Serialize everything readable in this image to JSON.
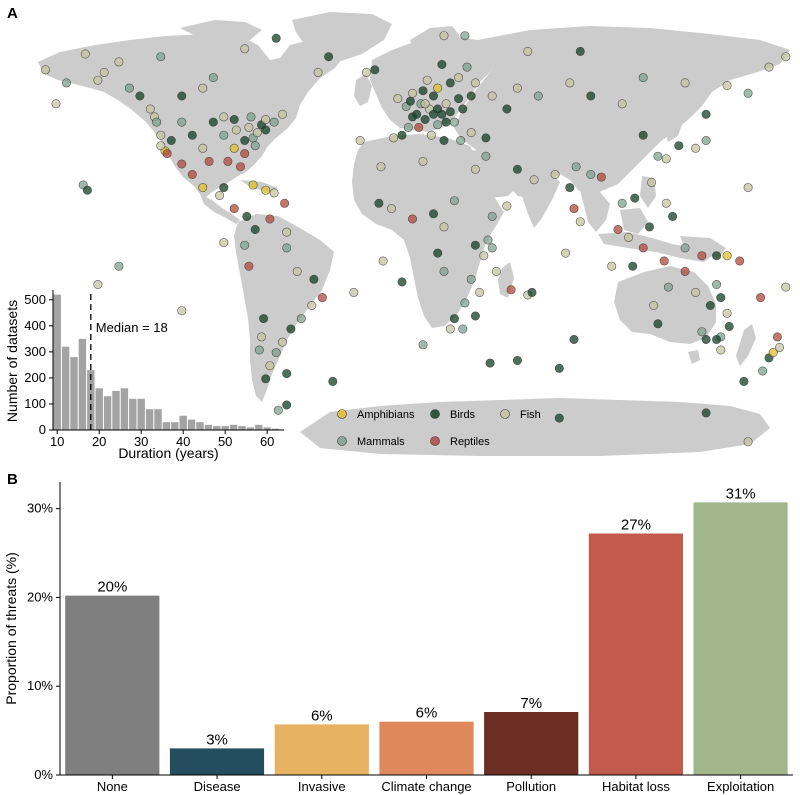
{
  "panels": {
    "a_label": "A",
    "b_label": "B"
  },
  "legend": {
    "title": "",
    "items": [
      {
        "name": "Amphibians",
        "color": "#e2bf2a"
      },
      {
        "name": "Birds",
        "color": "#123f25"
      },
      {
        "name": "Fish",
        "color": "#c5c3a2"
      },
      {
        "name": "Mammals",
        "color": "#7fa290"
      },
      {
        "name": "Reptiles",
        "color": "#b3493b"
      }
    ]
  },
  "map_points": [
    {
      "lon": -156,
      "lat": 71,
      "t": "Fish"
    },
    {
      "lon": -150,
      "lat": 61,
      "t": "Fish"
    },
    {
      "lon": -147,
      "lat": 64,
      "t": "Fish"
    },
    {
      "lon": -135,
      "lat": 58,
      "t": "Mammals"
    },
    {
      "lon": -130,
      "lat": 55,
      "t": "Birds"
    },
    {
      "lon": -125,
      "lat": 50,
      "t": "Fish"
    },
    {
      "lon": -123,
      "lat": 47,
      "t": "Fish"
    },
    {
      "lon": -122,
      "lat": 45,
      "t": "Mammals"
    },
    {
      "lon": -120,
      "lat": 40,
      "t": "Fish"
    },
    {
      "lon": -118,
      "lat": 34,
      "t": "Amphibians"
    },
    {
      "lon": -117,
      "lat": 33,
      "t": "Reptiles"
    },
    {
      "lon": -115,
      "lat": 38,
      "t": "Birds"
    },
    {
      "lon": -110,
      "lat": 45,
      "t": "Mammals"
    },
    {
      "lon": -105,
      "lat": 40,
      "t": "Birds"
    },
    {
      "lon": -100,
      "lat": 35,
      "t": "Fish"
    },
    {
      "lon": -97,
      "lat": 30,
      "t": "Reptiles"
    },
    {
      "lon": -95,
      "lat": 45,
      "t": "Birds"
    },
    {
      "lon": -90,
      "lat": 40,
      "t": "Mammals"
    },
    {
      "lon": -88,
      "lat": 30,
      "t": "Reptiles"
    },
    {
      "lon": -85,
      "lat": 35,
      "t": "Amphibians"
    },
    {
      "lon": -84,
      "lat": 42,
      "t": "Fish"
    },
    {
      "lon": -82,
      "lat": 28,
      "t": "Reptiles"
    },
    {
      "lon": -80,
      "lat": 38,
      "t": "Birds"
    },
    {
      "lon": -78,
      "lat": 43,
      "t": "Fish"
    },
    {
      "lon": -76,
      "lat": 39,
      "t": "Mammals"
    },
    {
      "lon": -74,
      "lat": 41,
      "t": "Fish"
    },
    {
      "lon": -72,
      "lat": 44,
      "t": "Birds"
    },
    {
      "lon": -70,
      "lat": 46,
      "t": "Fish"
    },
    {
      "lon": -66,
      "lat": 45,
      "t": "Mammals"
    },
    {
      "lon": -62,
      "lat": 48,
      "t": "Fish"
    },
    {
      "lon": -110,
      "lat": 55,
      "t": "Birds"
    },
    {
      "lon": -100,
      "lat": 58,
      "t": "Fish"
    },
    {
      "lon": -95,
      "lat": 62,
      "t": "Mammals"
    },
    {
      "lon": -105,
      "lat": 25,
      "t": "Reptiles"
    },
    {
      "lon": -100,
      "lat": 20,
      "t": "Amphibians"
    },
    {
      "lon": -92,
      "lat": 17,
      "t": "Fish"
    },
    {
      "lon": -85,
      "lat": 12,
      "t": "Reptiles"
    },
    {
      "lon": -79,
      "lat": 9,
      "t": "Birds"
    },
    {
      "lon": -76,
      "lat": 21,
      "t": "Amphibians"
    },
    {
      "lon": -66,
      "lat": 18,
      "t": "Fish"
    },
    {
      "lon": -61,
      "lat": 14,
      "t": "Reptiles"
    },
    {
      "lon": -75,
      "lat": 4,
      "t": "Birds"
    },
    {
      "lon": -68,
      "lat": 8,
      "t": "Reptiles"
    },
    {
      "lon": -60,
      "lat": 3,
      "t": "Fish"
    },
    {
      "lon": -60,
      "lat": -3,
      "t": "Mammals"
    },
    {
      "lon": -55,
      "lat": -12,
      "t": "Fish"
    },
    {
      "lon": -47,
      "lat": -15,
      "t": "Birds"
    },
    {
      "lon": -43,
      "lat": -22,
      "t": "Reptiles"
    },
    {
      "lon": -48,
      "lat": -25,
      "t": "Fish"
    },
    {
      "lon": -53,
      "lat": -30,
      "t": "Mammals"
    },
    {
      "lon": -58,
      "lat": -34,
      "t": "Birds"
    },
    {
      "lon": -62,
      "lat": -39,
      "t": "Fish"
    },
    {
      "lon": -65,
      "lat": -43,
      "t": "Mammals"
    },
    {
      "lon": -68,
      "lat": -48,
      "t": "Fish"
    },
    {
      "lon": -71,
      "lat": -30,
      "t": "Birds"
    },
    {
      "lon": -72,
      "lat": -37,
      "t": "Fish"
    },
    {
      "lon": -73,
      "lat": -42,
      "t": "Mammals"
    },
    {
      "lon": -70,
      "lat": -53,
      "t": "Birds"
    },
    {
      "lon": -60,
      "lat": -51,
      "t": "Birds"
    },
    {
      "lon": -38,
      "lat": -54,
      "t": "Birds"
    },
    {
      "lon": -78,
      "lat": -10,
      "t": "Reptiles"
    },
    {
      "lon": -80,
      "lat": -2,
      "t": "Mammals"
    },
    {
      "lon": -90,
      "lat": -1,
      "t": "Fish"
    },
    {
      "lon": -22,
      "lat": 64,
      "t": "Fish"
    },
    {
      "lon": -18,
      "lat": 65,
      "t": "Birds"
    },
    {
      "lon": -15,
      "lat": 28,
      "t": "Fish"
    },
    {
      "lon": -25,
      "lat": 38,
      "t": "Fish"
    },
    {
      "lon": -9,
      "lat": 39,
      "t": "Fish"
    },
    {
      "lon": -5,
      "lat": 40,
      "t": "Birds"
    },
    {
      "lon": -3,
      "lat": 51,
      "t": "Mammals"
    },
    {
      "lon": -1,
      "lat": 53,
      "t": "Birds"
    },
    {
      "lon": 0,
      "lat": 56,
      "t": "Fish"
    },
    {
      "lon": 2,
      "lat": 48,
      "t": "Birds"
    },
    {
      "lon": 4,
      "lat": 52,
      "t": "Mammals"
    },
    {
      "lon": 6,
      "lat": 46,
      "t": "Birds"
    },
    {
      "lon": 8,
      "lat": 50,
      "t": "Fish"
    },
    {
      "lon": 10,
      "lat": 55,
      "t": "Birds"
    },
    {
      "lon": 12,
      "lat": 44,
      "t": "Mammals"
    },
    {
      "lon": 14,
      "lat": 48,
      "t": "Birds"
    },
    {
      "lon": 16,
      "lat": 52,
      "t": "Fish"
    },
    {
      "lon": 18,
      "lat": 60,
      "t": "Birds"
    },
    {
      "lon": 20,
      "lat": 45,
      "t": "Mammals"
    },
    {
      "lon": 22,
      "lat": 62,
      "t": "Fish"
    },
    {
      "lon": 24,
      "lat": 50,
      "t": "Birds"
    },
    {
      "lon": 26,
      "lat": 66,
      "t": "Mammals"
    },
    {
      "lon": 28,
      "lat": 55,
      "t": "Birds"
    },
    {
      "lon": 30,
      "lat": 60,
      "t": "Fish"
    },
    {
      "lon": 14,
      "lat": 67,
      "t": "Birds"
    },
    {
      "lon": 7,
      "lat": 61,
      "t": "Fish"
    },
    {
      "lon": 12,
      "lat": 58,
      "t": "Amphibians"
    },
    {
      "lon": 5,
      "lat": 57,
      "t": "Birds"
    },
    {
      "lon": -7,
      "lat": 54,
      "t": "Fish"
    },
    {
      "lon": 3,
      "lat": 43,
      "t": "Reptiles"
    },
    {
      "lon": 9,
      "lat": 40,
      "t": "Fish"
    },
    {
      "lon": 15,
      "lat": 38,
      "t": "Birds"
    },
    {
      "lon": 23,
      "lat": 38,
      "t": "Mammals"
    },
    {
      "lon": 28,
      "lat": 41,
      "t": "Fish"
    },
    {
      "lon": 35,
      "lat": 39,
      "t": "Birds"
    },
    {
      "lon": 35,
      "lat": 32,
      "t": "Mammals"
    },
    {
      "lon": 38,
      "lat": 55,
      "t": "Fish"
    },
    {
      "lon": 45,
      "lat": 50,
      "t": "Birds"
    },
    {
      "lon": 50,
      "lat": 58,
      "t": "Fish"
    },
    {
      "lon": 60,
      "lat": 55,
      "t": "Mammals"
    },
    {
      "lon": 75,
      "lat": 60,
      "t": "Fish"
    },
    {
      "lon": 85,
      "lat": 55,
      "t": "Birds"
    },
    {
      "lon": 100,
      "lat": 52,
      "t": "Fish"
    },
    {
      "lon": 110,
      "lat": 62,
      "t": "Mammals"
    },
    {
      "lon": 130,
      "lat": 60,
      "t": "Fish"
    },
    {
      "lon": 140,
      "lat": 48,
      "t": "Birds"
    },
    {
      "lon": 150,
      "lat": 59,
      "t": "Fish"
    },
    {
      "lon": 160,
      "lat": 56,
      "t": "Mammals"
    },
    {
      "lon": 110,
      "lat": 40,
      "t": "Birds"
    },
    {
      "lon": 117,
      "lat": 32,
      "t": "Mammals"
    },
    {
      "lon": 121,
      "lat": 31,
      "t": "Fish"
    },
    {
      "lon": 127,
      "lat": 36,
      "t": "Birds"
    },
    {
      "lon": 135,
      "lat": 35,
      "t": "Fish"
    },
    {
      "lon": 140,
      "lat": 38,
      "t": "Mammals"
    },
    {
      "lon": 114,
      "lat": 22,
      "t": "Fish"
    },
    {
      "lon": 106,
      "lat": 16,
      "t": "Birds"
    },
    {
      "lon": 100,
      "lat": 14,
      "t": "Mammals"
    },
    {
      "lon": 98,
      "lat": 4,
      "t": "Reptiles"
    },
    {
      "lon": 103,
      "lat": 1,
      "t": "Fish"
    },
    {
      "lon": 110,
      "lat": -3,
      "t": "Reptiles"
    },
    {
      "lon": 113,
      "lat": 5,
      "t": "Birds"
    },
    {
      "lon": 121,
      "lat": 14,
      "t": "Fish"
    },
    {
      "lon": 124,
      "lat": 9,
      "t": "Birds"
    },
    {
      "lon": 120,
      "lat": -8,
      "t": "Reptiles"
    },
    {
      "lon": 130,
      "lat": -3,
      "t": "Mammals"
    },
    {
      "lon": 138,
      "lat": -6,
      "t": "Reptiles"
    },
    {
      "lon": 145,
      "lat": -6,
      "t": "Birds"
    },
    {
      "lon": 150,
      "lat": -6,
      "t": "Amphibians"
    },
    {
      "lon": 156,
      "lat": -8,
      "t": "Reptiles"
    },
    {
      "lon": 78,
      "lat": 28,
      "t": "Mammals"
    },
    {
      "lon": 75,
      "lat": 20,
      "t": "Birds"
    },
    {
      "lon": 77,
      "lat": 12,
      "t": "Reptiles"
    },
    {
      "lon": 80,
      "lat": 7,
      "t": "Fish"
    },
    {
      "lon": 85,
      "lat": 25,
      "t": "Mammals"
    },
    {
      "lon": 90,
      "lat": 24,
      "t": "Reptiles"
    },
    {
      "lon": 68,
      "lat": 25,
      "t": "Fish"
    },
    {
      "lon": 58,
      "lat": 23,
      "t": "Fish"
    },
    {
      "lon": 50,
      "lat": 27,
      "t": "Birds"
    },
    {
      "lon": 45,
      "lat": 13,
      "t": "Fish"
    },
    {
      "lon": 38,
      "lat": 9,
      "t": "Mammals"
    },
    {
      "lon": 36,
      "lat": 0,
      "t": "Mammals"
    },
    {
      "lon": 30,
      "lat": -2,
      "t": "Birds"
    },
    {
      "lon": 34,
      "lat": -6,
      "t": "Fish"
    },
    {
      "lon": 38,
      "lat": -3,
      "t": "Mammals"
    },
    {
      "lon": 28,
      "lat": -15,
      "t": "Mammals"
    },
    {
      "lon": 32,
      "lat": -20,
      "t": "Fish"
    },
    {
      "lon": 25,
      "lat": -24,
      "t": "Mammals"
    },
    {
      "lon": 20,
      "lat": -30,
      "t": "Birds"
    },
    {
      "lon": 18,
      "lat": -34,
      "t": "Fish"
    },
    {
      "lon": 24,
      "lat": -34,
      "t": "Mammals"
    },
    {
      "lon": 30,
      "lat": -29,
      "t": "Birds"
    },
    {
      "lon": 47,
      "lat": -19,
      "t": "Reptiles"
    },
    {
      "lon": 55,
      "lat": -21,
      "t": "Fish"
    },
    {
      "lon": 57,
      "lat": -20,
      "t": "Birds"
    },
    {
      "lon": 15,
      "lat": 5,
      "t": "Fish"
    },
    {
      "lon": 10,
      "lat": 10,
      "t": "Birds"
    },
    {
      "lon": 0,
      "lat": 8,
      "t": "Reptiles"
    },
    {
      "lon": -10,
      "lat": 12,
      "t": "Fish"
    },
    {
      "lon": -16,
      "lat": 14,
      "t": "Birds"
    },
    {
      "lon": 5,
      "lat": 30,
      "t": "Fish"
    },
    {
      "lon": 30,
      "lat": 27,
      "t": "Fish"
    },
    {
      "lon": 20,
      "lat": 15,
      "t": "Mammals"
    },
    {
      "lon": 15,
      "lat": -12,
      "t": "Mammals"
    },
    {
      "lon": 12,
      "lat": -5,
      "t": "Birds"
    },
    {
      "lon": 40,
      "lat": -12,
      "t": "Fish"
    },
    {
      "lon": 117,
      "lat": -32,
      "t": "Birds"
    },
    {
      "lon": 115,
      "lat": -25,
      "t": "Fish"
    },
    {
      "lon": 122,
      "lat": -18,
      "t": "Mammals"
    },
    {
      "lon": 130,
      "lat": -12,
      "t": "Reptiles"
    },
    {
      "lon": 135,
      "lat": -20,
      "t": "Fish"
    },
    {
      "lon": 138,
      "lat": -35,
      "t": "Mammals"
    },
    {
      "lon": 142,
      "lat": -25,
      "t": "Birds"
    },
    {
      "lon": 145,
      "lat": -17,
      "t": "Mammals"
    },
    {
      "lon": 147,
      "lat": -22,
      "t": "Birds"
    },
    {
      "lon": 150,
      "lat": -28,
      "t": "Fish"
    },
    {
      "lon": 151,
      "lat": -33,
      "t": "Birds"
    },
    {
      "lon": 147,
      "lat": -37,
      "t": "Mammals"
    },
    {
      "lon": 145,
      "lat": -38,
      "t": "Birds"
    },
    {
      "lon": 147,
      "lat": -42,
      "t": "Fish"
    },
    {
      "lon": 140,
      "lat": -38,
      "t": "Birds"
    },
    {
      "lon": 174,
      "lat": -37,
      "t": "Reptiles"
    },
    {
      "lon": 175,
      "lat": -41,
      "t": "Fish"
    },
    {
      "lon": 170,
      "lat": -45,
      "t": "Birds"
    },
    {
      "lon": 172,
      "lat": -43,
      "t": "Amphibians"
    },
    {
      "lon": 178,
      "lat": -18,
      "t": "Fish"
    },
    {
      "lon": 166,
      "lat": -22,
      "t": "Reptiles"
    },
    {
      "lon": 160,
      "lat": 20,
      "t": "Fish"
    },
    {
      "lon": -157,
      "lat": 21,
      "t": "Mammals"
    },
    {
      "lon": -155,
      "lat": 19,
      "t": "Birds"
    },
    {
      "lon": -170,
      "lat": 52,
      "t": "Fish"
    },
    {
      "lon": -165,
      "lat": 60,
      "t": "Mammals"
    },
    {
      "lon": -175,
      "lat": 65,
      "t": "Fish"
    },
    {
      "lon": -140,
      "lat": 68,
      "t": "Fish"
    },
    {
      "lon": -120,
      "lat": 70,
      "t": "Mammals"
    },
    {
      "lon": -80,
      "lat": 73,
      "t": "Fish"
    },
    {
      "lon": -65,
      "lat": 77,
      "t": "Birds"
    },
    {
      "lon": -45,
      "lat": 64,
      "t": "Fish"
    },
    {
      "lon": -40,
      "lat": 70,
      "t": "Birds"
    },
    {
      "lon": 15,
      "lat": 78,
      "t": "Fish"
    },
    {
      "lon": 25,
      "lat": 78,
      "t": "Mammals"
    },
    {
      "lon": 55,
      "lat": 72,
      "t": "Fish"
    },
    {
      "lon": 80,
      "lat": 72,
      "t": "Birds"
    },
    {
      "lon": 170,
      "lat": 66,
      "t": "Fish"
    },
    {
      "lon": 178,
      "lat": 70,
      "t": "Fish"
    },
    {
      "lon": -150,
      "lat": -17,
      "t": "Fish"
    },
    {
      "lon": -110,
      "lat": -27,
      "t": "Fish"
    },
    {
      "lon": -140,
      "lat": -10,
      "t": "Mammals"
    },
    {
      "lon": -28,
      "lat": -20,
      "t": "Fish"
    },
    {
      "lon": -14,
      "lat": -8,
      "t": "Fish"
    },
    {
      "lon": -5,
      "lat": -16,
      "t": "Birds"
    },
    {
      "lon": 5,
      "lat": -40,
      "t": "Mammals"
    },
    {
      "lon": 37,
      "lat": -47,
      "t": "Birds"
    },
    {
      "lon": 50,
      "lat": -46,
      "t": "Birds"
    },
    {
      "lon": 70,
      "lat": -49,
      "t": "Birds"
    },
    {
      "lon": 77,
      "lat": -38,
      "t": "Birds"
    },
    {
      "lon": 73,
      "lat": -5,
      "t": "Fish"
    },
    {
      "lon": 95,
      "lat": -10,
      "t": "Fish"
    },
    {
      "lon": 105,
      "lat": -10,
      "t": "Birds"
    },
    {
      "lon": 158,
      "lat": -54,
      "t": "Birds"
    },
    {
      "lon": 167,
      "lat": -50,
      "t": "Mammals"
    },
    {
      "lon": 140,
      "lat": -66,
      "t": "Birds"
    },
    {
      "lon": 160,
      "lat": -77,
      "t": "Fish"
    },
    {
      "lon": 70,
      "lat": -68,
      "t": "Birds"
    },
    {
      "lon": -60,
      "lat": -63,
      "t": "Birds"
    },
    {
      "lon": -64,
      "lat": -65,
      "t": "Mammals"
    },
    {
      "lon": -90,
      "lat": 20,
      "t": "Birds"
    },
    {
      "lon": -70,
      "lat": 19,
      "t": "Amphibians"
    },
    {
      "lon": -110,
      "lat": 29,
      "t": "Reptiles"
    },
    {
      "lon": -120,
      "lat": 36,
      "t": "Fish"
    },
    {
      "lon": -80,
      "lat": 33,
      "t": "Reptiles"
    },
    {
      "lon": -75,
      "lat": 36,
      "t": "Mammals"
    },
    {
      "lon": -90,
      "lat": 47,
      "t": "Fish"
    },
    {
      "lon": -85,
      "lat": 46,
      "t": "Birds"
    },
    {
      "lon": -77,
      "lat": 47,
      "t": "Mammals"
    },
    {
      "lon": -70,
      "lat": 42,
      "t": "Birds"
    },
    {
      "lon": 10,
      "lat": 48,
      "t": "Birds"
    },
    {
      "lon": 12,
      "lat": 50,
      "t": "Birds"
    },
    {
      "lon": 18,
      "lat": 49,
      "t": "Birds"
    },
    {
      "lon": 22,
      "lat": 54,
      "t": "Birds"
    },
    {
      "lon": 0,
      "lat": 47,
      "t": "Birds"
    },
    {
      "lon": -2,
      "lat": 43,
      "t": "Mammals"
    },
    {
      "lon": 6,
      "lat": 52,
      "t": "Fish"
    },
    {
      "lon": 16,
      "lat": 45,
      "t": "Birds"
    }
  ],
  "histogram": {
    "type": "bar",
    "xlabel": "Duration (years)",
    "ylabel": "Number of datasets",
    "x_ticks": [
      10,
      20,
      30,
      40,
      50,
      60
    ],
    "y_ticks": [
      0,
      100,
      200,
      300,
      400,
      500
    ],
    "xlim": [
      9,
      64
    ],
    "ylim": [
      0,
      530
    ],
    "bin_start": 9,
    "bin_width": 2,
    "counts": [
      520,
      320,
      280,
      350,
      230,
      160,
      130,
      150,
      160,
      120,
      120,
      80,
      80,
      30,
      30,
      55,
      40,
      30,
      20,
      15,
      15,
      20,
      15,
      10,
      20,
      10,
      5
    ],
    "median_label": "Median =  18",
    "median": 18
  },
  "chart_data": {
    "type": "bar",
    "categories": [
      "None",
      "Disease",
      "Invasive",
      "Climate change",
      "Pollution",
      "Habitat loss",
      "Exploitation"
    ],
    "values": [
      20.2,
      3.0,
      5.7,
      6.0,
      7.1,
      27.2,
      30.7
    ],
    "data_labels": [
      "20%",
      "3%",
      "6%",
      "6%",
      "7%",
      "27%",
      "31%"
    ],
    "colors": [
      "#7f7f7f",
      "#244d60",
      "#e7b262",
      "#de885b",
      "#6c2e22",
      "#c25b4d",
      "#a2b68b"
    ],
    "title": "",
    "xlabel": "",
    "ylabel": "Proportion of threats (%)",
    "y_ticks": [
      0,
      10,
      20,
      30
    ],
    "y_tick_labels": [
      "0%",
      "10%",
      "20%",
      "30%"
    ],
    "ylim": [
      0,
      33
    ]
  }
}
